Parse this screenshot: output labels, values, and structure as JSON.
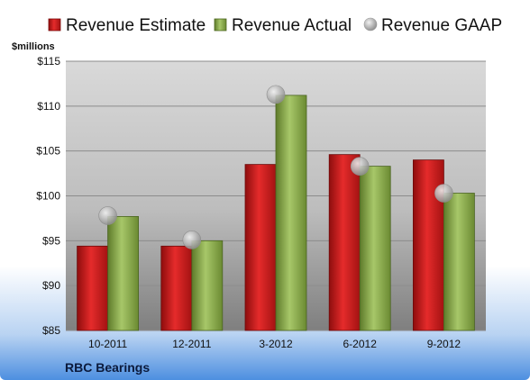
{
  "chart_data": {
    "type": "bar",
    "ylabel": "$millions",
    "company": "RBC Bearings",
    "categories": [
      "10-2011",
      "12-2011",
      "3-2012",
      "6-2012",
      "9-2012"
    ],
    "ylim": [
      85,
      115
    ],
    "yticks": [
      85,
      90,
      95,
      100,
      105,
      110,
      115
    ],
    "ytick_labels": [
      "$85",
      "$90",
      "$95",
      "$100",
      "$105",
      "$110",
      "$115"
    ],
    "grid": true,
    "legend_position": "top",
    "series": [
      {
        "name": "Revenue Estimate",
        "kind": "bar",
        "color": "#cc1a1a",
        "values": [
          94.4,
          94.4,
          103.5,
          104.6,
          104.0
        ]
      },
      {
        "name": "Revenue Actual",
        "kind": "bar",
        "color": "#86a845",
        "values": [
          97.7,
          95.0,
          111.2,
          103.3,
          100.3
        ]
      },
      {
        "name": "Revenue GAAP",
        "kind": "marker",
        "color": "#b5b5b5",
        "values": [
          97.8,
          95.1,
          111.3,
          103.3,
          100.3
        ]
      }
    ]
  }
}
